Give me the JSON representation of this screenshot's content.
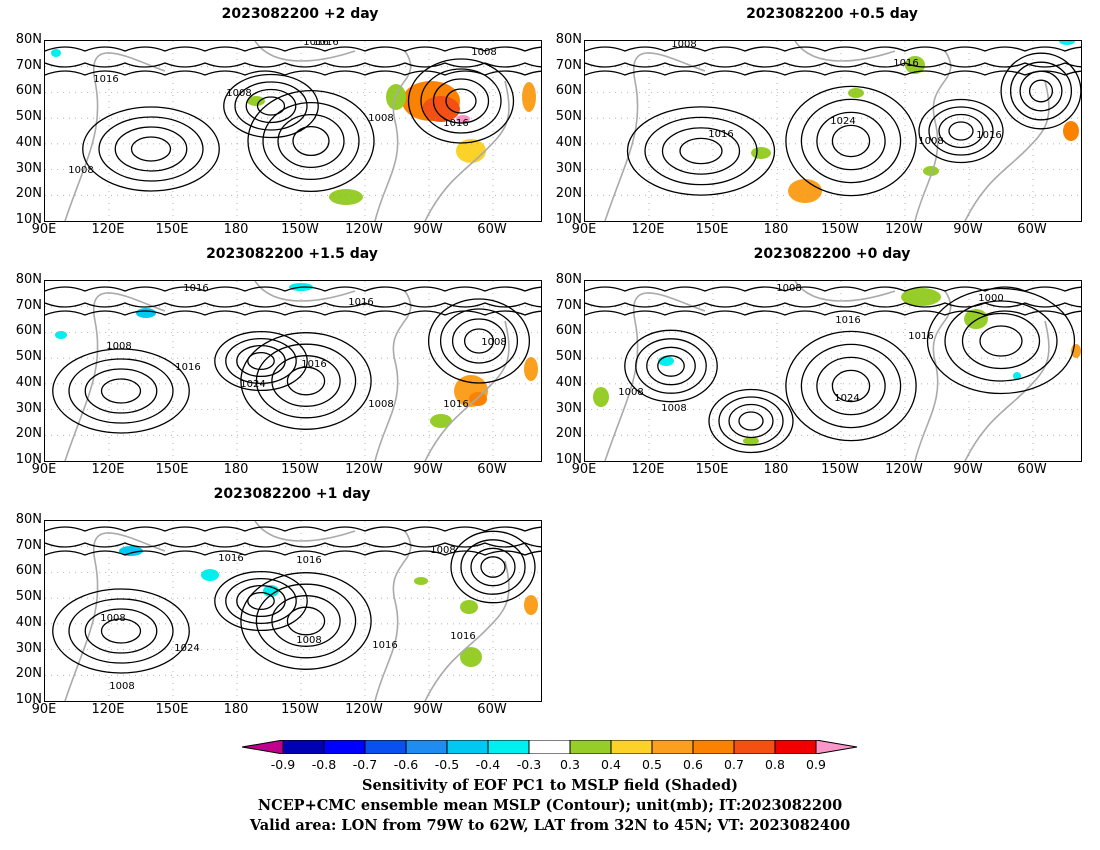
{
  "lat_ticks": [
    "80N",
    "70N",
    "60N",
    "50N",
    "40N",
    "30N",
    "20N",
    "10N"
  ],
  "lon_ticks": [
    "90E",
    "120E",
    "150E",
    "180",
    "150W",
    "120W",
    "90W",
    "60W"
  ],
  "panels": [
    {
      "id": "p2",
      "title": "2023082200  +2 day",
      "contour_labels": [
        "1016",
        "1016",
        "1016",
        "1008",
        "1016",
        "1008",
        "1008",
        "1016",
        "1008"
      ]
    },
    {
      "id": "p05",
      "title": "2023082200  +0.5 day",
      "contour_labels": [
        "1016",
        "1008",
        "1016",
        "1016",
        "1024",
        "1016",
        "1008",
        "1016"
      ]
    },
    {
      "id": "p15",
      "title": "2023082200  +1.5 day",
      "contour_labels": [
        "1016",
        "1016",
        "1016",
        "1008",
        "1008",
        "1016",
        "1016",
        "1024",
        "1008",
        "1016"
      ]
    },
    {
      "id": "p0",
      "title": "2023082200  +0 day",
      "contour_labels": [
        "1008",
        "1016",
        "1000",
        "1016",
        "1008",
        "1008",
        "1024"
      ]
    },
    {
      "id": "p1",
      "title": "2023082200  +1 day",
      "contour_labels": [
        "1016",
        "1016",
        "1008",
        "1008",
        "1016",
        "1024",
        "1008",
        "1016",
        "1008"
      ]
    }
  ],
  "colorbar": {
    "labels": [
      "-0.9",
      "-0.8",
      "-0.7",
      "-0.6",
      "-0.5",
      "-0.4",
      "-0.3",
      "0.3",
      "0.4",
      "0.5",
      "0.6",
      "0.7",
      "0.8",
      "0.9"
    ],
    "colors": [
      "#c0008c",
      "#0000b4",
      "#0000ff",
      "#0a50f0",
      "#1e8cf0",
      "#00c8f0",
      "#00f0f0",
      "#ffffff",
      "#96cd28",
      "#fad228",
      "#faa01e",
      "#fa8200",
      "#f55014",
      "#f00000",
      "#fa96c8"
    ]
  },
  "caption": {
    "line1": "Sensitivity of EOF PC1 to MSLP field (Shaded)",
    "line2": "NCEP+CMC ensemble mean MSLP (Contour); unit(mb); IT:2023082200",
    "line3": "Valid area: LON from 79W to 62W, LAT from 32N to 45N; VT: 2023082400"
  }
}
